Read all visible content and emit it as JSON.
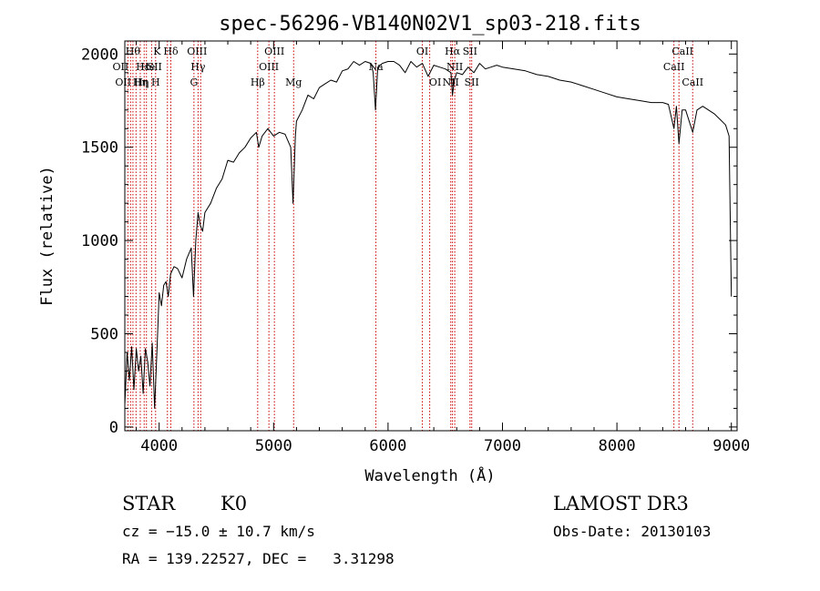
{
  "chart_data": {
    "type": "line",
    "title": "spec-56296-VB140N02V1_sp03-218.fits",
    "xlabel": "Wavelength (Å)",
    "ylabel": "Flux (relative)",
    "xlim": [
      3700,
      9050
    ],
    "ylim": [
      -20,
      2070
    ],
    "xticks": [
      4000,
      5000,
      6000,
      7000,
      8000,
      9000
    ],
    "yticks": [
      0,
      500,
      1000,
      1500,
      2000
    ],
    "series": [
      {
        "name": "flux",
        "x": [
          3700,
          3720,
          3740,
          3760,
          3780,
          3800,
          3820,
          3840,
          3860,
          3880,
          3900,
          3920,
          3940,
          3960,
          3980,
          4000,
          4020,
          4040,
          4060,
          4080,
          4100,
          4130,
          4160,
          4200,
          4240,
          4280,
          4300,
          4320,
          4340,
          4360,
          4380,
          4400,
          4450,
          4500,
          4550,
          4600,
          4650,
          4700,
          4750,
          4800,
          4850,
          4870,
          4900,
          4950,
          5000,
          5050,
          5100,
          5150,
          5170,
          5190,
          5200,
          5250,
          5300,
          5350,
          5400,
          5450,
          5500,
          5550,
          5600,
          5650,
          5700,
          5750,
          5800,
          5850,
          5870,
          5890,
          5910,
          5950,
          6000,
          6050,
          6100,
          6150,
          6200,
          6250,
          6300,
          6350,
          6400,
          6450,
          6500,
          6550,
          6563,
          6580,
          6600,
          6650,
          6700,
          6750,
          6800,
          6850,
          6900,
          6950,
          7000,
          7100,
          7200,
          7300,
          7400,
          7500,
          7600,
          7700,
          7800,
          7900,
          8000,
          8100,
          8200,
          8300,
          8400,
          8450,
          8498,
          8520,
          8542,
          8570,
          8600,
          8662,
          8700,
          8750,
          8800,
          8850,
          8900,
          8950,
          8980,
          9000
        ],
        "y": [
          120,
          400,
          250,
          430,
          200,
          420,
          300,
          380,
          180,
          420,
          350,
          220,
          450,
          100,
          400,
          720,
          650,
          760,
          780,
          700,
          820,
          860,
          850,
          800,
          900,
          960,
          700,
          1000,
          1150,
          1080,
          1050,
          1150,
          1200,
          1280,
          1330,
          1430,
          1420,
          1470,
          1500,
          1550,
          1580,
          1500,
          1560,
          1600,
          1560,
          1580,
          1570,
          1500,
          1200,
          1560,
          1640,
          1700,
          1780,
          1760,
          1820,
          1840,
          1860,
          1850,
          1910,
          1920,
          1960,
          1940,
          1960,
          1950,
          1900,
          1700,
          1930,
          1950,
          1960,
          1960,
          1940,
          1900,
          1960,
          1930,
          1950,
          1880,
          1940,
          1930,
          1920,
          1900,
          1780,
          1860,
          1900,
          1890,
          1930,
          1900,
          1950,
          1920,
          1930,
          1940,
          1930,
          1920,
          1910,
          1890,
          1880,
          1860,
          1850,
          1830,
          1810,
          1790,
          1770,
          1760,
          1750,
          1740,
          1740,
          1730,
          1600,
          1720,
          1520,
          1700,
          1700,
          1580,
          1700,
          1720,
          1700,
          1680,
          1650,
          1620,
          1560,
          700
        ]
      }
    ],
    "spectral_lines": [
      {
        "wavelength": 3727,
        "label": "OII",
        "row": 2,
        "dx": -8
      },
      {
        "wavelength": 3750,
        "label": "OII",
        "row": 3,
        "dx": -8
      },
      {
        "wavelength": 3771,
        "label": "Hθ",
        "row": 1,
        "dx": 0
      },
      {
        "wavelength": 3798,
        "label": "Hη",
        "row": 3,
        "dx": 6
      },
      {
        "wavelength": 3835,
        "label": "Hη",
        "row": 3,
        "dx": 0
      },
      {
        "wavelength": 3869,
        "label": "He",
        "row": 2,
        "dx": 4
      },
      {
        "wavelength": 3889,
        "label": "Hε",
        "row": 2,
        "dx": -4
      },
      {
        "wavelength": 3934,
        "label": "K",
        "row": 1,
        "dx": 6
      },
      {
        "wavelength": 3969,
        "label": "H",
        "row": 3,
        "dx": 0
      },
      {
        "wavelength": 4072,
        "label": "SII",
        "row": 2,
        "dx": -14
      },
      {
        "wavelength": 4102,
        "label": "Hδ",
        "row": 1,
        "dx": 0
      },
      {
        "wavelength": 4304,
        "label": "G",
        "row": 3,
        "dx": 0
      },
      {
        "wavelength": 4340,
        "label": "Hγ",
        "row": 2,
        "dx": 0
      },
      {
        "wavelength": 4363,
        "label": "OIII",
        "row": 1,
        "dx": -4
      },
      {
        "wavelength": 4861,
        "label": "Hβ",
        "row": 3,
        "dx": 0
      },
      {
        "wavelength": 4959,
        "label": "OIII",
        "row": 2,
        "dx": 0
      },
      {
        "wavelength": 5007,
        "label": "OIII",
        "row": 1,
        "dx": 0
      },
      {
        "wavelength": 5175,
        "label": "Mg",
        "row": 3,
        "dx": 0
      },
      {
        "wavelength": 5894,
        "label": "Na",
        "row": 2,
        "dx": 0
      },
      {
        "wavelength": 6300,
        "label": "OI",
        "row": 1,
        "dx": 0
      },
      {
        "wavelength": 6364,
        "label": "OI",
        "row": 3,
        "dx": 6
      },
      {
        "wavelength": 6548,
        "label": "NII",
        "row": 3,
        "dx": 0
      },
      {
        "wavelength": 6563,
        "label": "Hα",
        "row": 1,
        "dx": 0
      },
      {
        "wavelength": 6583,
        "label": "NII",
        "row": 2,
        "dx": 0
      },
      {
        "wavelength": 6716,
        "label": "SII",
        "row": 1,
        "dx": 0
      },
      {
        "wavelength": 6731,
        "label": "SII",
        "row": 3,
        "dx": 0
      },
      {
        "wavelength": 8498,
        "label": "CaII",
        "row": 2,
        "dx": 0
      },
      {
        "wavelength": 8542,
        "label": "CaII",
        "row": 1,
        "dx": 4
      },
      {
        "wavelength": 8662,
        "label": "CaII",
        "row": 3,
        "dx": 0
      }
    ]
  },
  "footer": {
    "object_class": "STAR",
    "subclass": "K0",
    "redshift": "cz = −15.0 ± 10.7 km/s",
    "coordinates": "RA = 139.22527, DEC =   3.31298",
    "survey": "LAMOST DR3",
    "obs_date": "Obs-Date: 20130103"
  },
  "colors": {
    "spectrum": "#000000",
    "line_markers": "#cc0000",
    "axes": "#000000",
    "background": "#ffffff"
  }
}
